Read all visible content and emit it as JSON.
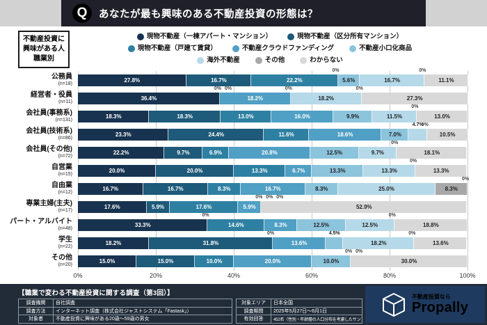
{
  "header": {
    "q": "Q",
    "title": "あなたが最も興味のある不動産投資の形態は？"
  },
  "sidebar_label": [
    "不動産投資に",
    "興味がある人",
    "職業別"
  ],
  "chart_data": {
    "type": "bar",
    "stacked": true,
    "orientation": "horizontal",
    "title": "あなたが最も興味のある不動産投資の形態は？",
    "x_ticks": [
      "0%",
      "20%",
      "40%",
      "60%",
      "80%",
      "100%"
    ],
    "xlim": [
      0,
      100
    ],
    "legend": [
      {
        "label": "現物不動産（一棟アパート・マンション）",
        "color": "#17334f"
      },
      {
        "label": "現物不動産（区分所有マンション）",
        "color": "#1e5a7a"
      },
      {
        "label": "現物不動産（戸建て賃貸）",
        "color": "#2e80a2"
      },
      {
        "label": "不動産クラウドファンディング",
        "color": "#509fc4"
      },
      {
        "label": "不動産小口化商品",
        "color": "#8cc4dc"
      },
      {
        "label": "海外不動産",
        "color": "#b5d9e8"
      },
      {
        "label": "その他",
        "color": "#a8a8a8"
      },
      {
        "label": "わからない",
        "color": "#d8d8d8"
      }
    ],
    "rows": [
      {
        "label": "公務員",
        "n": "(n=18)",
        "values": [
          27.8,
          16.7,
          22.2,
          0,
          5.6,
          16.7,
          0,
          11.1
        ]
      },
      {
        "label": "経営者・役員",
        "n": "(n=11)",
        "values": [
          36.4,
          0,
          0,
          18.2,
          0,
          18.2,
          0,
          27.3
        ]
      },
      {
        "label": "会社員(事務系)",
        "n": "(n=131)",
        "values": [
          18.3,
          18.3,
          13.0,
          16.0,
          9.9,
          11.5,
          0,
          13.0
        ]
      },
      {
        "label": "会社員(技術系)",
        "n": "(n=86)",
        "values": [
          23.3,
          24.4,
          11.6,
          18.6,
          7.0,
          4.7,
          0,
          10.5
        ]
      },
      {
        "label": "会社員(その他)",
        "n": "(n=72)",
        "values": [
          22.2,
          9.7,
          6.9,
          20.8,
          12.5,
          9.7,
          0,
          18.1
        ]
      },
      {
        "label": "自営業",
        "n": "(n=15)",
        "values": [
          20.0,
          20.0,
          13.3,
          6.7,
          13.3,
          13.3,
          0,
          13.3
        ]
      },
      {
        "label": "自由業",
        "n": "(n=12)",
        "values": [
          16.7,
          16.7,
          8.3,
          16.7,
          8.3,
          25.0,
          8.3,
          0
        ]
      },
      {
        "label": "専業主婦(主夫)",
        "n": "(n=17)",
        "values": [
          17.6,
          5.9,
          17.6,
          5.9,
          0,
          0,
          0,
          52.9
        ]
      },
      {
        "label": "パート・アルバイト",
        "n": "(n=48)",
        "values": [
          33.3,
          0,
          14.6,
          8.3,
          12.5,
          12.5,
          0,
          18.8
        ]
      },
      {
        "label": "学生",
        "n": "(n=22)",
        "values": [
          18.2,
          31.8,
          0,
          13.6,
          4.5,
          18.2,
          0,
          13.6
        ]
      },
      {
        "label": "その他",
        "n": "(n=20)",
        "values": [
          15.0,
          15.0,
          10.0,
          20.0,
          10.0,
          0,
          0,
          30.0
        ]
      }
    ]
  },
  "footer": {
    "title": "【職業で変わる不動産投資に関する調査（第3回）】",
    "left_rows": [
      {
        "label": "調査機関",
        "value": "自社調査"
      },
      {
        "label": "調査方法",
        "value": "インターネット調査（株式会社ジャストシステム「Fastask」）"
      },
      {
        "label": "対象者",
        "value": "不動産投資に興味がある20歳～59歳の男女"
      }
    ],
    "right_rows": [
      {
        "label": "対象エリア",
        "value": "日本全国"
      },
      {
        "label": "調査期間",
        "value": "2025年5月27日～6月1日"
      },
      {
        "label": "有効回答",
        "value": "452名（性別・年齢層の人口分布を考慮したサンプリング）"
      }
    ],
    "logo": {
      "tagline": "不動産投資なら",
      "brand": "Propally"
    }
  }
}
